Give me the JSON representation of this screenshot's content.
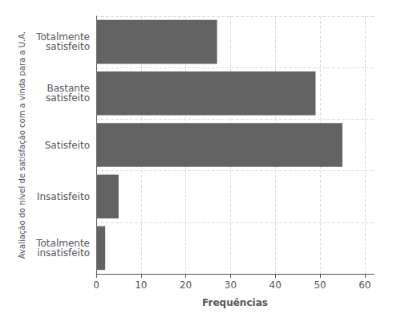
{
  "chart_data": {
    "type": "bar",
    "orientation": "horizontal",
    "categories": [
      "Totalmente\ninsatisfeito",
      "Insatisfeito",
      "Satisfeito",
      "Bastante\nsatisfeito",
      "Totalmente\nsatisfeito"
    ],
    "values": [
      2,
      5,
      55,
      49,
      27
    ],
    "color": "#636363",
    "xlabel": "Frequências",
    "ylabel": "Avaliação do nível de satisfação com a vinda para a U.A.",
    "xlim": [
      0,
      62
    ],
    "xticks": [
      0,
      10,
      20,
      30,
      40,
      50,
      60
    ],
    "grid": true
  }
}
